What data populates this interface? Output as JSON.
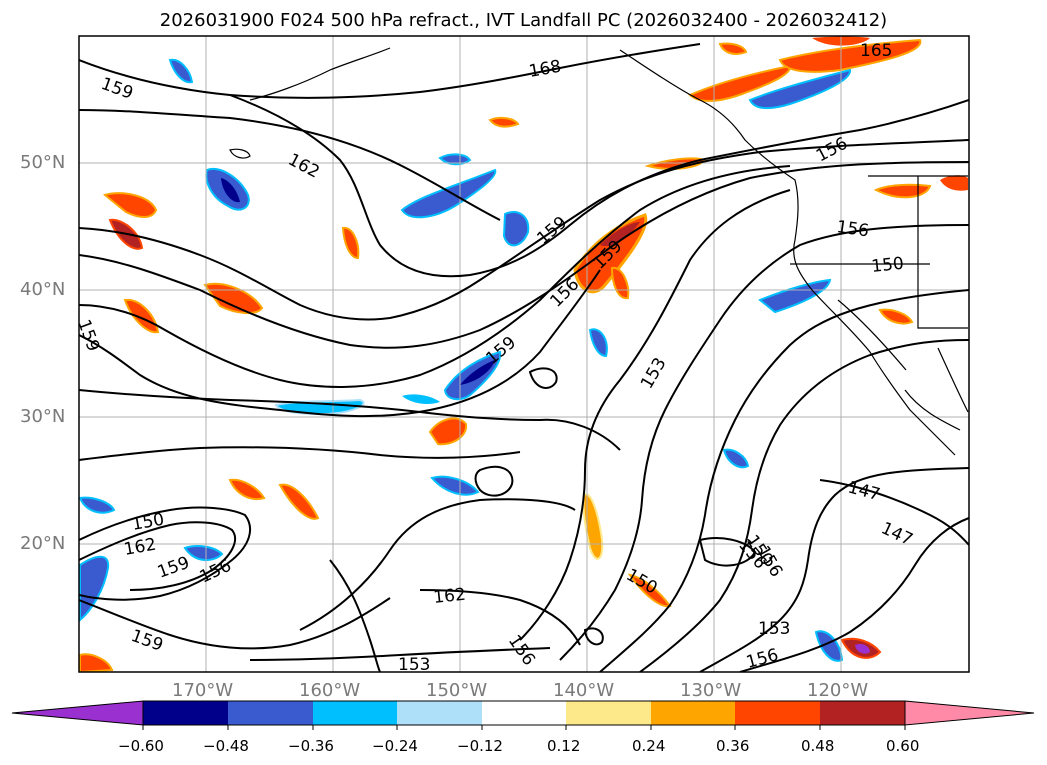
{
  "title": "2026031900 F024 500 hPa refract., IVT Landfall PC (2026032400 - 2026032412)",
  "map": {
    "lat_labels": [
      "50°N",
      "40°N",
      "30°N",
      "20°N"
    ],
    "lon_labels": [
      "170°W",
      "160°W",
      "150°W",
      "140°W",
      "130°W",
      "120°W"
    ],
    "contour_labels": [
      "159",
      "162",
      "168",
      "165",
      "156",
      "159",
      "156",
      "159",
      "150",
      "159",
      "159",
      "156",
      "153",
      "150",
      "147",
      "147",
      "150",
      "162",
      "159",
      "156",
      "162",
      "159",
      "156",
      "153",
      "156",
      "153",
      "156",
      "150",
      "156"
    ],
    "contour_color": "#000000",
    "coast_color": "#000000"
  },
  "colorbar": {
    "colors": [
      "#9b30d0",
      "#00008b",
      "#3a5bd0",
      "#00bfff",
      "#aee0fa",
      "#ffffff",
      "#fde88a",
      "#ffa500",
      "#ff4500",
      "#b22222",
      "#ff8aa8"
    ],
    "tick_labels": [
      "−0.60",
      "−0.48",
      "−0.36",
      "−0.24",
      "−0.12",
      "0.12",
      "0.24",
      "0.36",
      "0.48",
      "0.60"
    ]
  }
}
